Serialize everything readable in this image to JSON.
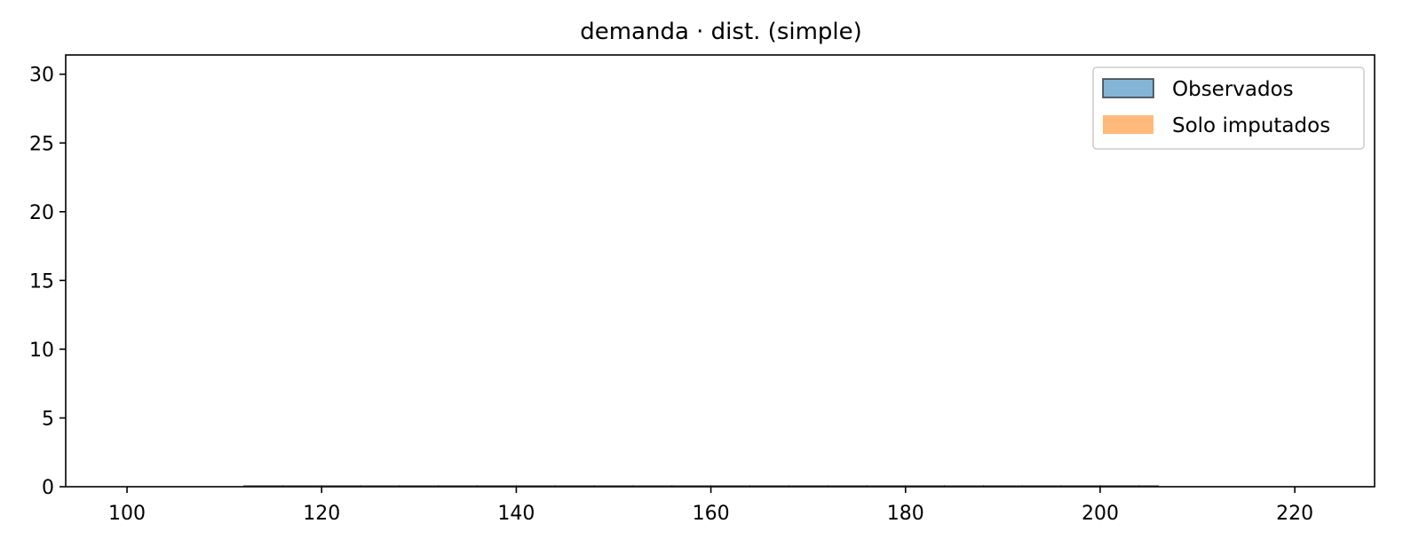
{
  "chart_data": {
    "type": "bar",
    "title": "demanda · dist. (simple)",
    "xlabel": "",
    "ylabel": "",
    "xlim": [
      93.7,
      228.2
    ],
    "ylim": [
      0,
      31.4
    ],
    "x_ticks": [
      100,
      120,
      140,
      160,
      180,
      200,
      220
    ],
    "y_ticks": [
      0,
      5,
      10,
      15,
      20,
      25,
      30
    ],
    "legend_position": "top-right",
    "grid": false,
    "series": [
      {
        "name": "Observados",
        "color": "#1f77b4",
        "edge_color": "#000000",
        "bins": [
          112,
          116,
          120,
          124,
          128,
          132,
          136,
          140,
          144,
          148,
          152,
          156,
          160,
          164,
          168,
          172,
          176,
          180,
          184,
          188,
          192,
          196,
          200,
          204,
          206
        ],
        "counts": [
          0,
          0,
          0,
          0,
          0,
          0,
          0,
          0,
          0,
          0,
          0,
          0,
          0,
          0,
          0,
          0,
          0,
          0,
          0,
          0,
          0,
          0,
          0,
          0
        ]
      },
      {
        "name": "Solo imputados",
        "color": "#ff7f0e",
        "bins": [],
        "counts": []
      }
    ]
  }
}
